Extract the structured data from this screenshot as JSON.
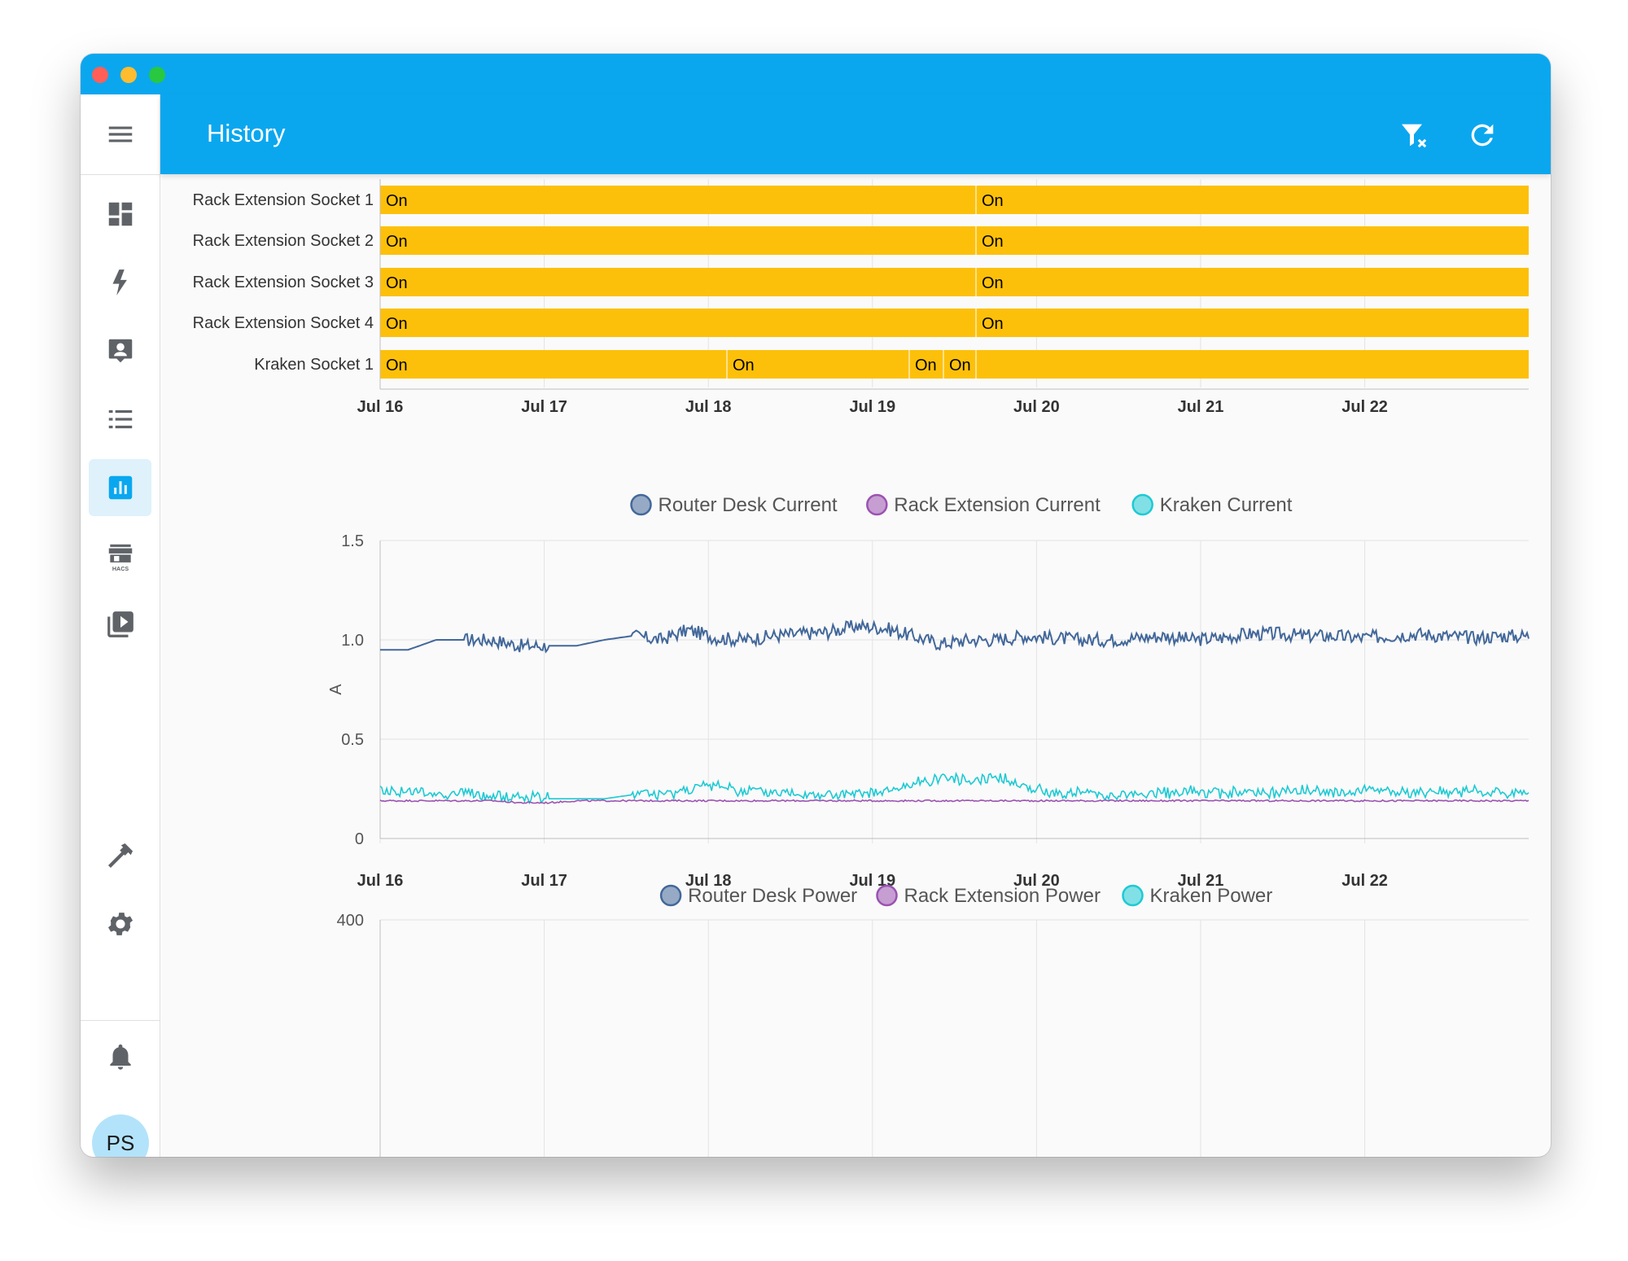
{
  "page": {
    "title": "History",
    "avatar_initials": "PS",
    "accent_color": "#0aa7ef",
    "state_on_color": "#fdc00a"
  },
  "toolbar": {
    "clear_filter_icon": "filter-remove-icon",
    "refresh_icon": "refresh-icon"
  },
  "sidebar": {
    "items": [
      {
        "icon": "dashboard-icon",
        "active": false
      },
      {
        "icon": "lightning-bolt-icon",
        "active": false
      },
      {
        "icon": "account-box-icon",
        "active": false
      },
      {
        "icon": "format-list-icon",
        "active": false
      },
      {
        "icon": "chart-box-icon",
        "active": true
      },
      {
        "icon": "hacs-store-icon",
        "active": false,
        "text": "HACS"
      },
      {
        "icon": "play-box-multiple-icon",
        "active": false
      },
      {
        "icon": "hammer-icon",
        "active": false
      },
      {
        "icon": "gear-icon",
        "active": false
      },
      {
        "icon": "bell-icon",
        "active": false
      }
    ]
  },
  "chart_data": [
    {
      "type": "timeline",
      "x_ticks": [
        "Jul 16",
        "Jul 17",
        "Jul 18",
        "Jul 19",
        "Jul 20",
        "Jul 21",
        "Jul 22"
      ],
      "rows": [
        {
          "name": "Rack Extension Socket 1",
          "labels": [
            "On",
            "On"
          ]
        },
        {
          "name": "Rack Extension Socket 2",
          "labels": [
            "On",
            "On"
          ]
        },
        {
          "name": "Rack Extension Socket 3",
          "labels": [
            "On",
            "On"
          ]
        },
        {
          "name": "Rack Extension Socket 4",
          "labels": [
            "On",
            "On"
          ]
        },
        {
          "name": "Kraken Socket 1",
          "labels": [
            "On",
            "On",
            "On",
            "On"
          ]
        }
      ]
    },
    {
      "type": "line",
      "ylabel": "A",
      "ylim": [
        0,
        1.5
      ],
      "y_ticks": [
        "0",
        "0.5",
        "1.0",
        "1.5"
      ],
      "x_ticks": [
        "Jul 16",
        "Jul 17",
        "Jul 18",
        "Jul 19",
        "Jul 20",
        "Jul 21",
        "Jul 22"
      ],
      "series": [
        {
          "name": "Router Desk Current",
          "color": "#43689a",
          "values": [
            0.95,
            0.95,
            1.0,
            1.0,
            1.0,
            0.97,
            0.97,
            0.97,
            1.0,
            1.02,
            1.0,
            1.05,
            1.01,
            1.0,
            1.02,
            1.03,
            1.04,
            1.07,
            1.06,
            1.02,
            0.98,
            1.0,
            1.0,
            1.02,
            1.01,
            1.0,
            1.0,
            1.01,
            1.02,
            1.0,
            1.01,
            1.03,
            1.03,
            1.02,
            1.02,
            1.01,
            1.02,
            1.03,
            1.02,
            1.01,
            1.02,
            1.02
          ]
        },
        {
          "name": "Rack Extension Current",
          "color": "#9b52b1",
          "values": [
            0.19,
            0.19,
            0.19,
            0.19,
            0.19,
            0.18,
            0.18,
            0.19,
            0.19,
            0.19,
            0.19,
            0.19,
            0.19,
            0.19,
            0.19,
            0.19,
            0.19,
            0.19,
            0.19,
            0.19,
            0.19,
            0.19,
            0.19,
            0.19,
            0.19,
            0.19,
            0.19,
            0.19,
            0.19,
            0.19,
            0.19,
            0.19,
            0.19,
            0.19,
            0.19,
            0.19,
            0.19,
            0.19,
            0.19,
            0.19,
            0.19,
            0.19
          ]
        },
        {
          "name": "Kraken Current",
          "color": "#1dcad3",
          "values": [
            0.23,
            0.23,
            0.21,
            0.22,
            0.2,
            0.2,
            0.2,
            0.2,
            0.2,
            0.22,
            0.21,
            0.24,
            0.26,
            0.23,
            0.22,
            0.22,
            0.21,
            0.21,
            0.22,
            0.26,
            0.3,
            0.28,
            0.3,
            0.25,
            0.22,
            0.22,
            0.21,
            0.21,
            0.22,
            0.23,
            0.22,
            0.22,
            0.22,
            0.23,
            0.22,
            0.23,
            0.22,
            0.22,
            0.23,
            0.23,
            0.22,
            0.22
          ]
        }
      ]
    },
    {
      "type": "line",
      "y_ticks": [
        "400"
      ],
      "series": [
        {
          "name": "Router Desk Power",
          "color": "#43689a"
        },
        {
          "name": "Rack Extension Power",
          "color": "#9b52b1"
        },
        {
          "name": "Kraken Power",
          "color": "#1dcad3"
        }
      ]
    }
  ]
}
